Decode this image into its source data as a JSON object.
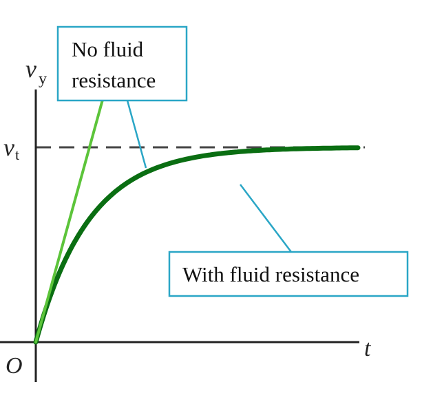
{
  "chart_data": {
    "type": "line",
    "xlabel": "t",
    "ylabel": "v",
    "ylabel_subscript": "y",
    "origin_label": "O",
    "reference_line": {
      "label": "v",
      "label_subscript": "t",
      "style": "dashed",
      "value": 1.0
    },
    "xlim": [
      0,
      6
    ],
    "ylim": [
      0,
      1.5
    ],
    "grid": false,
    "series": [
      {
        "name": "No fluid resistance",
        "function": "linear",
        "slope": 1.0,
        "t_end": 1.35,
        "color": "#5cc43a"
      },
      {
        "name": "With fluid resistance",
        "function": "terminal-velocity",
        "t_end": 6.0,
        "color": "#0a6e12"
      }
    ],
    "annotations": [
      {
        "text_lines": [
          "No fluid",
          "resistance"
        ],
        "points_to": "No fluid resistance"
      },
      {
        "text_lines": [
          "With fluid resistance"
        ],
        "points_to": "With fluid resistance"
      }
    ],
    "colors": {
      "box_border": "#2aa6c6",
      "leader": "#2aa6c6",
      "axis": "#222222",
      "dash": "#444444"
    }
  }
}
